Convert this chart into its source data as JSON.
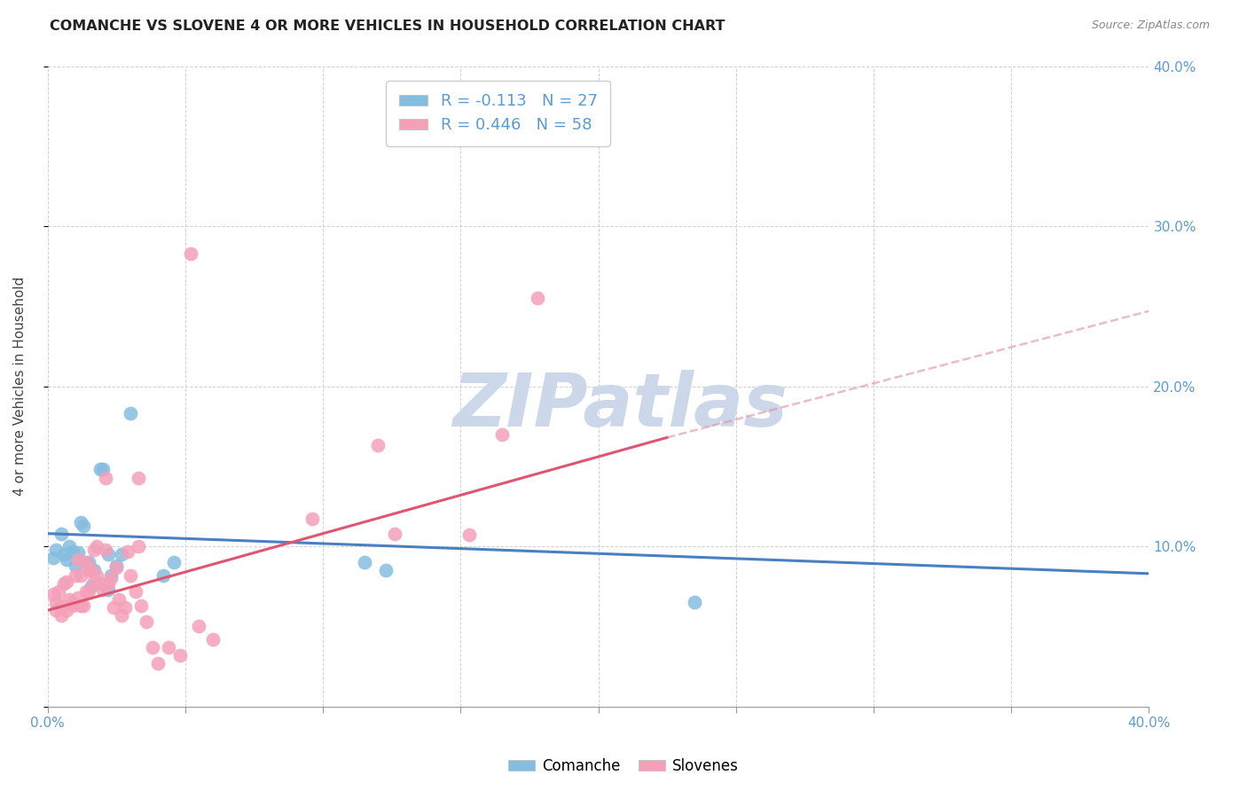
{
  "title": "COMANCHE VS SLOVENE 4 OR MORE VEHICLES IN HOUSEHOLD CORRELATION CHART",
  "source": "Source: ZipAtlas.com",
  "ylabel": "4 or more Vehicles in Household",
  "xlim": [
    0.0,
    0.4
  ],
  "ylim": [
    0.0,
    0.4
  ],
  "xticks": [
    0.0,
    0.05,
    0.1,
    0.15,
    0.2,
    0.25,
    0.3,
    0.35,
    0.4
  ],
  "yticks": [
    0.0,
    0.1,
    0.2,
    0.3,
    0.4
  ],
  "comanche_color": "#85bde0",
  "slovene_color": "#f4a0b8",
  "comanche_line_color": "#4a7fc1",
  "slovene_line_color": "#e05570",
  "slovene_dash_color": "#e090a0",
  "watermark_text": "ZIPatlas",
  "watermark_color": "#ccd8ea",
  "legend_r1": "R = -0.113",
  "legend_n1": "N = 27",
  "legend_r2": "R = 0.446",
  "legend_n2": "N = 58",
  "legend_color1": "#85bde0",
  "legend_color2": "#f4a0b8",
  "legend_text_color": "#5b9bd5",
  "right_axis_color": "#5b9bd5",
  "bottom_axis_color": "#5b9bd5",
  "comanche_points": [
    [
      0.003,
      0.098
    ],
    [
      0.005,
      0.108
    ],
    [
      0.006,
      0.095
    ],
    [
      0.007,
      0.092
    ],
    [
      0.008,
      0.1
    ],
    [
      0.009,
      0.097
    ],
    [
      0.01,
      0.088
    ],
    [
      0.011,
      0.096
    ],
    [
      0.012,
      0.115
    ],
    [
      0.013,
      0.113
    ],
    [
      0.015,
      0.09
    ],
    [
      0.016,
      0.075
    ],
    [
      0.017,
      0.085
    ],
    [
      0.019,
      0.148
    ],
    [
      0.02,
      0.148
    ],
    [
      0.022,
      0.095
    ],
    [
      0.022,
      0.073
    ],
    [
      0.023,
      0.082
    ],
    [
      0.025,
      0.088
    ],
    [
      0.027,
      0.095
    ],
    [
      0.03,
      0.183
    ],
    [
      0.042,
      0.082
    ],
    [
      0.046,
      0.09
    ],
    [
      0.115,
      0.09
    ],
    [
      0.123,
      0.085
    ],
    [
      0.235,
      0.065
    ],
    [
      0.002,
      0.093
    ]
  ],
  "slovene_points": [
    [
      0.002,
      0.07
    ],
    [
      0.003,
      0.065
    ],
    [
      0.003,
      0.06
    ],
    [
      0.004,
      0.072
    ],
    [
      0.005,
      0.063
    ],
    [
      0.005,
      0.057
    ],
    [
      0.006,
      0.077
    ],
    [
      0.007,
      0.06
    ],
    [
      0.007,
      0.078
    ],
    [
      0.008,
      0.067
    ],
    [
      0.009,
      0.065
    ],
    [
      0.009,
      0.063
    ],
    [
      0.01,
      0.082
    ],
    [
      0.011,
      0.092
    ],
    [
      0.011,
      0.068
    ],
    [
      0.012,
      0.082
    ],
    [
      0.012,
      0.063
    ],
    [
      0.013,
      0.063
    ],
    [
      0.014,
      0.072
    ],
    [
      0.014,
      0.09
    ],
    [
      0.015,
      0.085
    ],
    [
      0.015,
      0.072
    ],
    [
      0.016,
      0.085
    ],
    [
      0.017,
      0.098
    ],
    [
      0.017,
      0.078
    ],
    [
      0.018,
      0.1
    ],
    [
      0.018,
      0.082
    ],
    [
      0.019,
      0.077
    ],
    [
      0.02,
      0.073
    ],
    [
      0.021,
      0.143
    ],
    [
      0.021,
      0.098
    ],
    [
      0.022,
      0.077
    ],
    [
      0.023,
      0.08
    ],
    [
      0.024,
      0.062
    ],
    [
      0.025,
      0.087
    ],
    [
      0.026,
      0.067
    ],
    [
      0.027,
      0.057
    ],
    [
      0.028,
      0.062
    ],
    [
      0.029,
      0.097
    ],
    [
      0.03,
      0.082
    ],
    [
      0.032,
      0.072
    ],
    [
      0.033,
      0.1
    ],
    [
      0.033,
      0.143
    ],
    [
      0.034,
      0.063
    ],
    [
      0.036,
      0.053
    ],
    [
      0.038,
      0.037
    ],
    [
      0.04,
      0.027
    ],
    [
      0.044,
      0.037
    ],
    [
      0.048,
      0.032
    ],
    [
      0.052,
      0.283
    ],
    [
      0.055,
      0.05
    ],
    [
      0.06,
      0.042
    ],
    [
      0.096,
      0.117
    ],
    [
      0.12,
      0.163
    ],
    [
      0.126,
      0.108
    ],
    [
      0.153,
      0.107
    ],
    [
      0.165,
      0.17
    ],
    [
      0.178,
      0.255
    ]
  ],
  "comanche_line": {
    "x0": 0.0,
    "y0": 0.108,
    "x1": 0.4,
    "y1": 0.083
  },
  "slovene_line_solid": {
    "x0": 0.0,
    "y0": 0.06,
    "x1": 0.225,
    "y1": 0.168
  },
  "slovene_line_dash": {
    "x0": 0.225,
    "y0": 0.168,
    "x1": 0.4,
    "y1": 0.247
  }
}
